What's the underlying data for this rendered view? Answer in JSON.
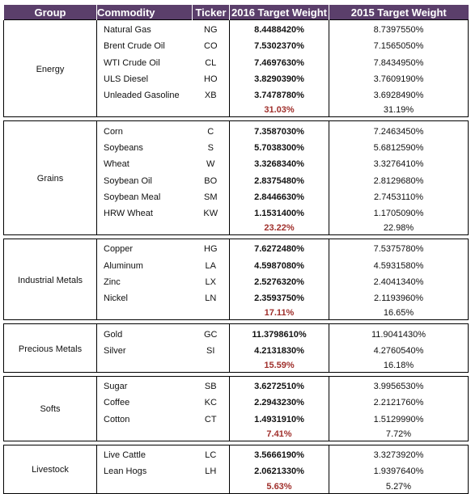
{
  "header": {
    "group": "Group",
    "commodity": "Commodity",
    "ticker": "Ticker",
    "target_2016": "2016 Target Weight",
    "target_2015": "2015 Target Weight"
  },
  "groups": [
    {
      "name": "Energy",
      "rows": [
        {
          "commodity": "Natural Gas",
          "ticker": "NG",
          "w2016": "8.4488420%",
          "w2015": "8.7397550%"
        },
        {
          "commodity": "Brent Crude Oil",
          "ticker": "CO",
          "w2016": "7.5302370%",
          "w2015": "7.1565050%"
        },
        {
          "commodity": "WTI Crude Oil",
          "ticker": "CL",
          "w2016": "7.4697630%",
          "w2015": "7.8434950%"
        },
        {
          "commodity": "ULS Diesel",
          "ticker": "HO",
          "w2016": "3.8290390%",
          "w2015": "3.7609190%"
        },
        {
          "commodity": "Unleaded Gasoline",
          "ticker": "XB",
          "w2016": "3.7478780%",
          "w2015": "3.6928490%"
        }
      ],
      "subtotal_2016": "31.03%",
      "subtotal_2015": "31.19%"
    },
    {
      "name": "Grains",
      "rows": [
        {
          "commodity": "Corn",
          "ticker": "C",
          "w2016": "7.3587030%",
          "w2015": "7.2463450%"
        },
        {
          "commodity": "Soybeans",
          "ticker": "S",
          "w2016": "5.7038300%",
          "w2015": "5.6812590%"
        },
        {
          "commodity": "Wheat",
          "ticker": "W",
          "w2016": "3.3268340%",
          "w2015": "3.3276410%"
        },
        {
          "commodity": "Soybean Oil",
          "ticker": "BO",
          "w2016": "2.8375480%",
          "w2015": "2.8129680%"
        },
        {
          "commodity": "Soybean Meal",
          "ticker": "SM",
          "w2016": "2.8446630%",
          "w2015": "2.7453110%"
        },
        {
          "commodity": "HRW Wheat",
          "ticker": "KW",
          "w2016": "1.1531400%",
          "w2015": "1.1705090%"
        }
      ],
      "subtotal_2016": "23.22%",
      "subtotal_2015": "22.98%"
    },
    {
      "name": "Industrial Metals",
      "rows": [
        {
          "commodity": "Copper",
          "ticker": "HG",
          "w2016": "7.6272480%",
          "w2015": "7.5375780%"
        },
        {
          "commodity": "Aluminum",
          "ticker": "LA",
          "w2016": "4.5987080%",
          "w2015": "4.5931580%"
        },
        {
          "commodity": "Zinc",
          "ticker": "LX",
          "w2016": "2.5276320%",
          "w2015": "2.4041340%"
        },
        {
          "commodity": "Nickel",
          "ticker": "LN",
          "w2016": "2.3593750%",
          "w2015": "2.1193960%"
        }
      ],
      "subtotal_2016": "17.11%",
      "subtotal_2015": "16.65%"
    },
    {
      "name": "Precious Metals",
      "rows": [
        {
          "commodity": "Gold",
          "ticker": "GC",
          "w2016": "11.3798610%",
          "w2015": "11.9041430%"
        },
        {
          "commodity": "Silver",
          "ticker": "SI",
          "w2016": "4.2131830%",
          "w2015": "4.2760540%"
        }
      ],
      "subtotal_2016": "15.59%",
      "subtotal_2015": "16.18%"
    },
    {
      "name": "Softs",
      "rows": [
        {
          "commodity": "Sugar",
          "ticker": "SB",
          "w2016": "3.6272510%",
          "w2015": "3.9956530%"
        },
        {
          "commodity": "Coffee",
          "ticker": "KC",
          "w2016": "2.2943230%",
          "w2015": "2.2121760%"
        },
        {
          "commodity": "Cotton",
          "ticker": "CT",
          "w2016": "1.4931910%",
          "w2015": "1.5129990%"
        }
      ],
      "subtotal_2016": "7.41%",
      "subtotal_2015": "7.72%"
    },
    {
      "name": "Livestock",
      "rows": [
        {
          "commodity": "Live Cattle",
          "ticker": "LC",
          "w2016": "3.5666190%",
          "w2015": "3.3273920%"
        },
        {
          "commodity": "Lean Hogs",
          "ticker": "LH",
          "w2016": "2.0621330%",
          "w2015": "1.9397640%"
        }
      ],
      "subtotal_2016": "5.63%",
      "subtotal_2015": "5.27%"
    }
  ],
  "colors": {
    "header_bg": "#5b3f6b",
    "header_text": "#ffffff",
    "subtotal_2016": "#a0302c"
  }
}
